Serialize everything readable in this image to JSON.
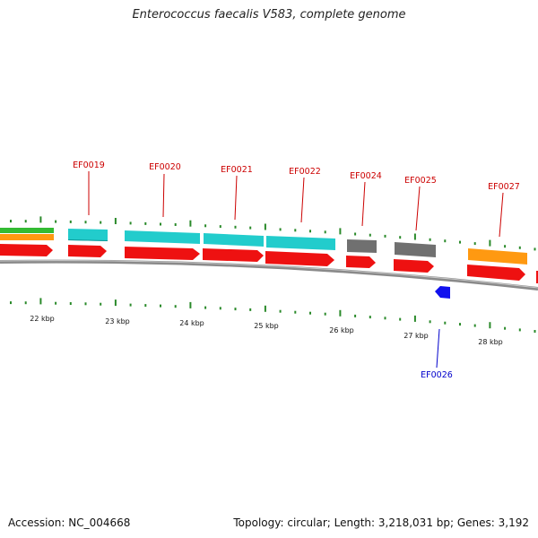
{
  "title": "Enterococcus faecalis V583, complete genome",
  "footer": {
    "accession": "Accession: NC_004668",
    "summary": "Topology: circular; Length: 3,218,031 bp; Genes: 3,192"
  },
  "colors": {
    "backbone": "#8a8a8a",
    "cds_forward": "#ee1111",
    "cyan_track": "#22cccc",
    "gray_track": "#707070",
    "orange_track": "#ff9911",
    "green_track": "#33bb33",
    "tick": "#2a8a2a",
    "label_red": "#cc0000",
    "label_blue": "#0000cc",
    "marker_blue": "#1111ee"
  },
  "kbp_labels": [
    "22 kbp",
    "23 kbp",
    "24 kbp",
    "25 kbp",
    "26 kbp",
    "27 kbp",
    "28 kbp"
  ],
  "genes": [
    {
      "id": "EF0019",
      "color": "red"
    },
    {
      "id": "EF0020",
      "color": "red"
    },
    {
      "id": "EF0021",
      "color": "red"
    },
    {
      "id": "EF0022",
      "color": "red"
    },
    {
      "id": "EF0024",
      "color": "red"
    },
    {
      "id": "EF0025",
      "color": "red"
    },
    {
      "id": "EF0027",
      "color": "red"
    },
    {
      "id": "EF0026",
      "color": "blue"
    }
  ]
}
